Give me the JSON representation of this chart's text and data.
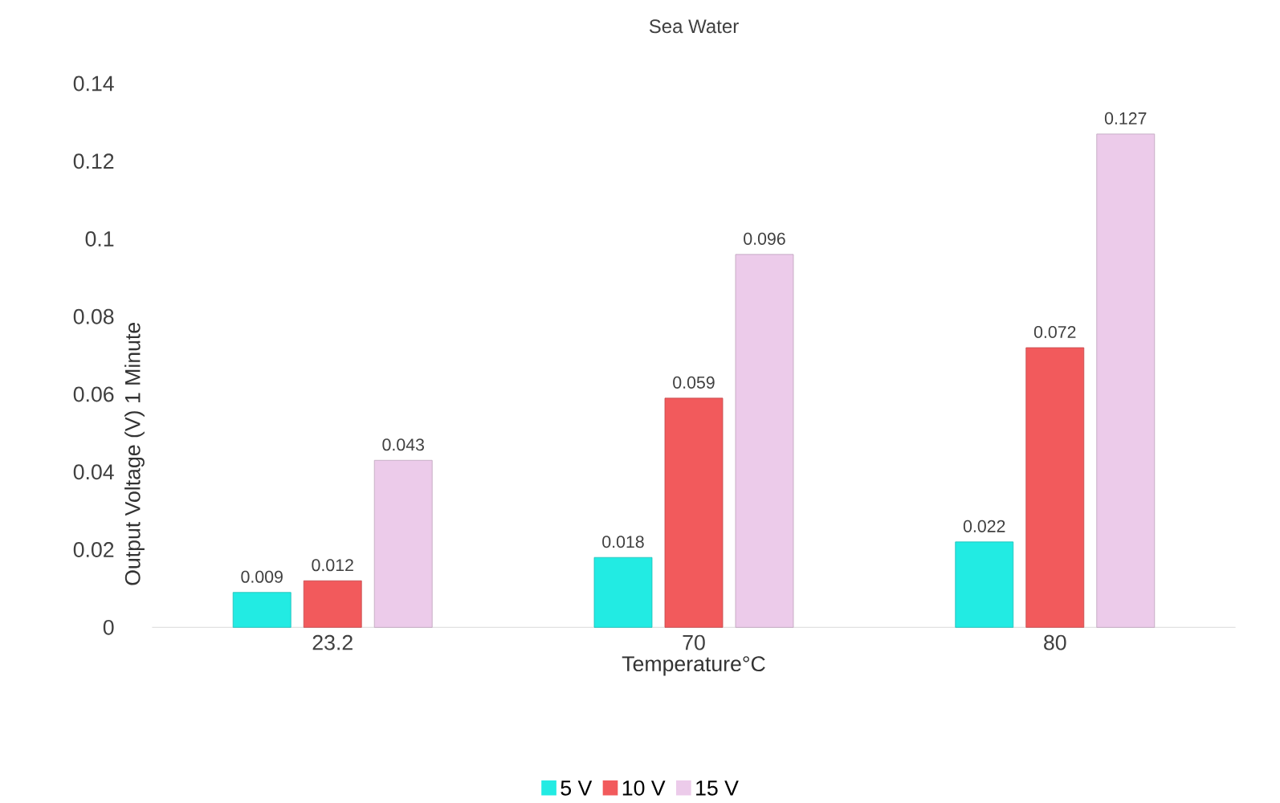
{
  "chart_data": {
    "type": "bar",
    "title": "Sea Water",
    "xlabel": "Temperature°C",
    "ylabel": "Output Voltage (V) 1 Minute",
    "categories": [
      "23.2",
      "70",
      "80"
    ],
    "series": [
      {
        "name": "5 V",
        "color": "#22ebe3",
        "values": [
          0.009,
          0.018,
          0.022
        ],
        "value_labels": [
          "0.009",
          "0.018",
          "0.022"
        ]
      },
      {
        "name": "10 V",
        "color": "#f25a5c",
        "values": [
          0.012,
          0.059,
          0.072
        ],
        "value_labels": [
          "0.012",
          "0.059",
          "0.072"
        ]
      },
      {
        "name": "15 V",
        "color": "#eccbea",
        "values": [
          0.043,
          0.096,
          0.127
        ],
        "value_labels": [
          "0.043",
          "0.096",
          "0.127"
        ]
      }
    ],
    "ylim": [
      0,
      0.14
    ],
    "yticks": [
      0,
      0.02,
      0.04,
      0.06,
      0.08,
      0.1,
      0.12,
      0.14
    ],
    "legend": "bottom"
  }
}
